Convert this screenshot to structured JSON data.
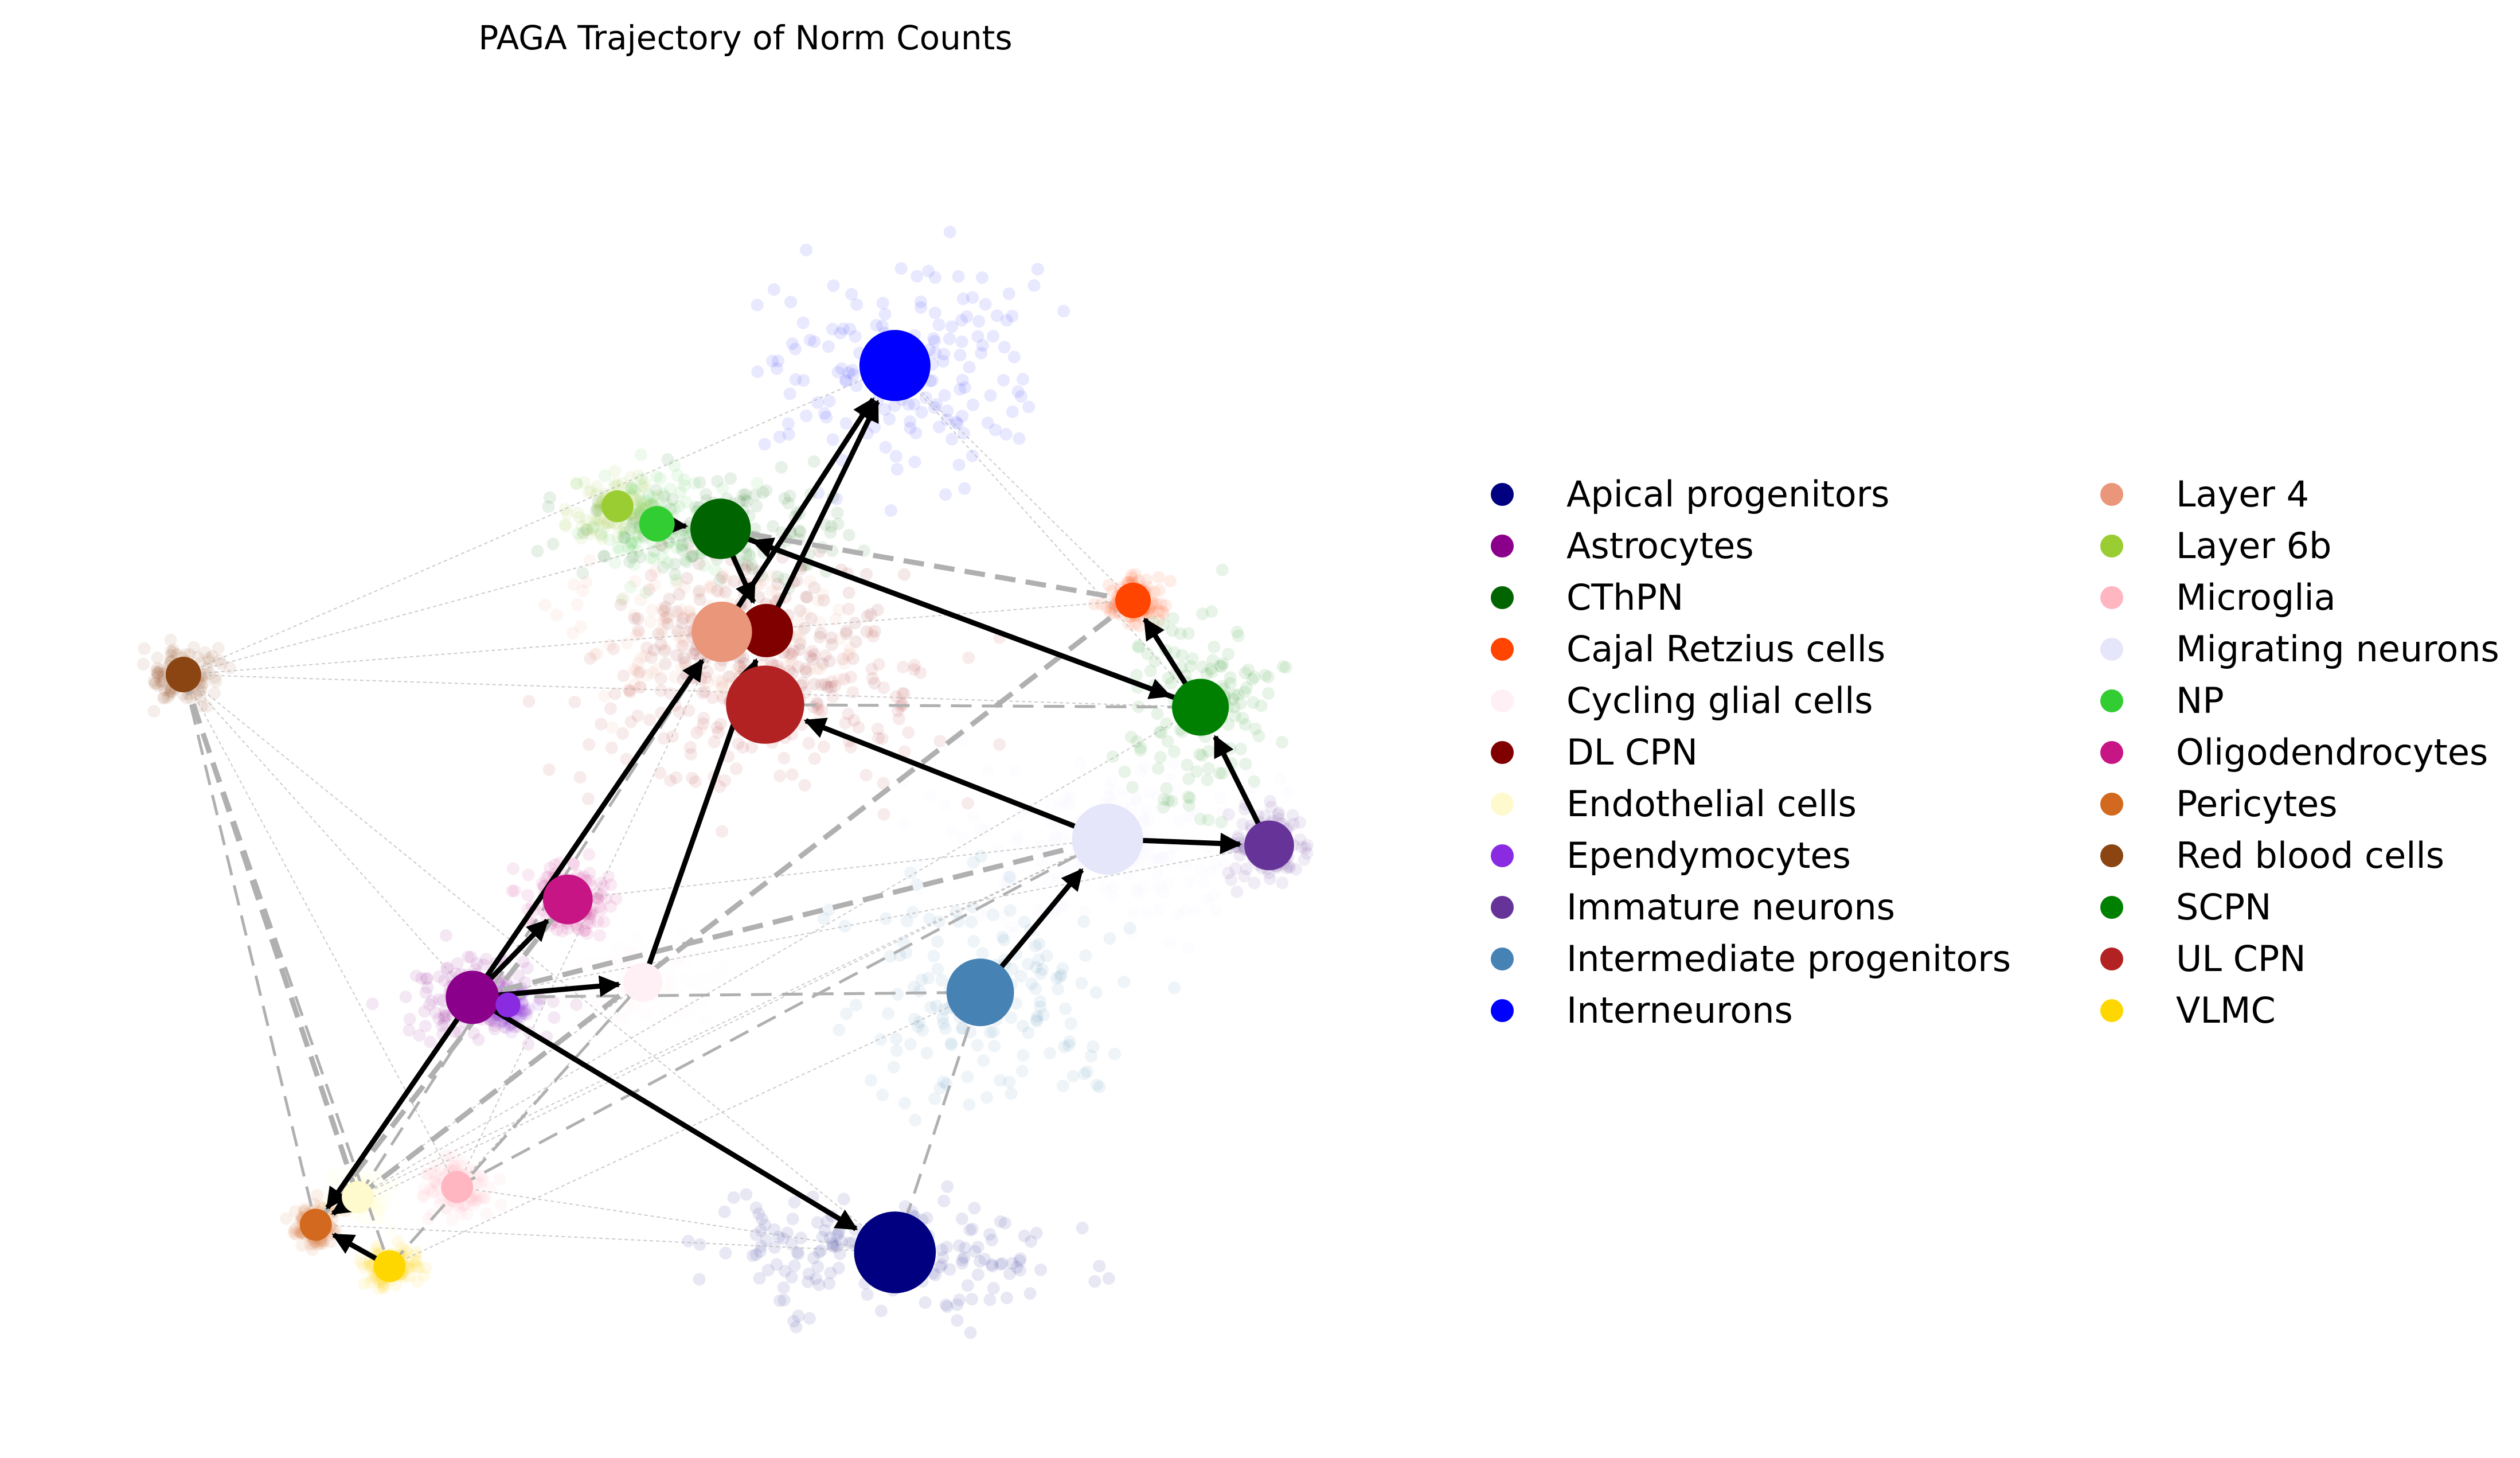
{
  "chart_data": {
    "type": "scatter",
    "title": "PAGA Trajectory of Norm Counts",
    "xlabel": "",
    "ylabel": "",
    "axes_visible": false,
    "grid": false,
    "legend_placement": "right",
    "legend_columns": 2,
    "categories": [
      {
        "name": "Apical progenitors",
        "color": "#000080"
      },
      {
        "name": "Astrocytes",
        "color": "#8B008B"
      },
      {
        "name": "CThPN",
        "color": "#006400"
      },
      {
        "name": "Cajal Retzius cells",
        "color": "#FF4500"
      },
      {
        "name": "Cycling glial cells",
        "color": "#FFF0F5"
      },
      {
        "name": "DL CPN",
        "color": "#800000"
      },
      {
        "name": "Endothelial cells",
        "color": "#FFFACD"
      },
      {
        "name": "Ependymocytes",
        "color": "#8A2BE2"
      },
      {
        "name": "Immature neurons",
        "color": "#663399"
      },
      {
        "name": "Intermediate progenitors",
        "color": "#4682B4"
      },
      {
        "name": "Interneurons",
        "color": "#0000FF"
      },
      {
        "name": "Layer 4",
        "color": "#E9967A"
      },
      {
        "name": "Layer 6b",
        "color": "#9ACD32"
      },
      {
        "name": "Microglia",
        "color": "#FFB6C1"
      },
      {
        "name": "Migrating neurons",
        "color": "#E6E6FA"
      },
      {
        "name": "NP",
        "color": "#32CD32"
      },
      {
        "name": "Oligodendrocytes",
        "color": "#C71585"
      },
      {
        "name": "Pericytes",
        "color": "#D2691E"
      },
      {
        "name": "Red blood cells",
        "color": "#8B4513"
      },
      {
        "name": "SCPN",
        "color": "#008000"
      },
      {
        "name": "UL CPN",
        "color": "#B22222"
      },
      {
        "name": "VLMC",
        "color": "#FFD700"
      }
    ],
    "nodes": [
      {
        "name": "Interneurons",
        "x": 0.622,
        "y": 0.814,
        "size": 1.0
      },
      {
        "name": "CThPN",
        "x": 0.485,
        "y": 0.684,
        "size": 0.85
      },
      {
        "name": "Layer 6b",
        "x": 0.404,
        "y": 0.702,
        "size": 0.45
      },
      {
        "name": "NP",
        "x": 0.435,
        "y": 0.688,
        "size": 0.5
      },
      {
        "name": "DL CPN",
        "x": 0.521,
        "y": 0.603,
        "size": 0.75
      },
      {
        "name": "Layer 4",
        "x": 0.486,
        "y": 0.602,
        "size": 0.85
      },
      {
        "name": "UL CPN",
        "x": 0.52,
        "y": 0.544,
        "size": 1.1
      },
      {
        "name": "Cajal Retzius cells",
        "x": 0.809,
        "y": 0.627,
        "size": 0.5
      },
      {
        "name": "SCPN",
        "x": 0.862,
        "y": 0.542,
        "size": 0.8
      },
      {
        "name": "Red blood cells",
        "x": 0.063,
        "y": 0.568,
        "size": 0.5
      },
      {
        "name": "Migrating neurons",
        "x": 0.789,
        "y": 0.437,
        "size": 1.0
      },
      {
        "name": "Immature neurons",
        "x": 0.916,
        "y": 0.432,
        "size": 0.7
      },
      {
        "name": "Oligodendrocytes",
        "x": 0.365,
        "y": 0.389,
        "size": 0.7
      },
      {
        "name": "Astrocytes",
        "x": 0.29,
        "y": 0.311,
        "size": 0.75
      },
      {
        "name": "Ependymocytes",
        "x": 0.318,
        "y": 0.305,
        "size": 0.35
      },
      {
        "name": "Cycling glial cells",
        "x": 0.424,
        "y": 0.323,
        "size": 0.55
      },
      {
        "name": "Intermediate progenitors",
        "x": 0.689,
        "y": 0.315,
        "size": 0.95
      },
      {
        "name": "Endothelial cells",
        "x": 0.2,
        "y": 0.152,
        "size": 0.45
      },
      {
        "name": "Microglia",
        "x": 0.278,
        "y": 0.16,
        "size": 0.45
      },
      {
        "name": "Pericytes",
        "x": 0.167,
        "y": 0.13,
        "size": 0.45
      },
      {
        "name": "VLMC",
        "x": 0.225,
        "y": 0.097,
        "size": 0.45
      },
      {
        "name": "Apical progenitors",
        "x": 0.622,
        "y": 0.108,
        "size": 1.15
      }
    ],
    "directed_edges": [
      {
        "from": "NP",
        "to": "CThPN"
      },
      {
        "from": "CThPN",
        "to": "DL CPN"
      },
      {
        "from": "DL CPN",
        "to": "Interneurons"
      },
      {
        "from": "Layer 4",
        "to": "Interneurons"
      },
      {
        "from": "SCPN",
        "to": "CThPN"
      },
      {
        "from": "CThPN",
        "to": "SCPN"
      },
      {
        "from": "SCPN",
        "to": "Cajal Retzius cells"
      },
      {
        "from": "Immature neurons",
        "to": "SCPN"
      },
      {
        "from": "Migrating neurons",
        "to": "Immature neurons"
      },
      {
        "from": "Migrating neurons",
        "to": "UL CPN"
      },
      {
        "from": "Intermediate progenitors",
        "to": "Migrating neurons"
      },
      {
        "from": "Astrocytes",
        "to": "Layer 4"
      },
      {
        "from": "Astrocytes",
        "to": "Oligodendrocytes"
      },
      {
        "from": "Astrocytes",
        "to": "Cycling glial cells"
      },
      {
        "from": "Astrocytes",
        "to": "Apical progenitors"
      },
      {
        "from": "Astrocytes",
        "to": "Pericytes"
      },
      {
        "from": "Cycling glial cells",
        "to": "DL CPN"
      },
      {
        "from": "Endothelial cells",
        "to": "Pericytes"
      },
      {
        "from": "VLMC",
        "to": "Pericytes"
      }
    ],
    "dashed_edges": [
      {
        "from": "CThPN",
        "to": "Cajal Retzius cells"
      },
      {
        "from": "Red blood cells",
        "to": "Pericytes"
      },
      {
        "from": "Red blood cells",
        "to": "VLMC"
      },
      {
        "from": "Red blood cells",
        "to": "Endothelial cells"
      },
      {
        "from": "Astrocytes",
        "to": "Intermediate progenitors"
      },
      {
        "from": "Microglia",
        "to": "Migrating neurons"
      },
      {
        "from": "Endothelial cells",
        "to": "Cajal Retzius cells"
      },
      {
        "from": "UL CPN",
        "to": "SCPN"
      },
      {
        "from": "VLMC",
        "to": "Cycling glial cells"
      },
      {
        "from": "Pericytes",
        "to": "Oligodendrocytes"
      },
      {
        "from": "Apical progenitors",
        "to": "Intermediate progenitors"
      },
      {
        "from": "Endothelial cells",
        "to": "Layer 4"
      },
      {
        "from": "Astrocytes",
        "to": "Migrating neurons"
      }
    ],
    "faint_edges": [
      {
        "from": "Red blood cells",
        "to": "Interneurons"
      },
      {
        "from": "Red blood cells",
        "to": "CThPN"
      },
      {
        "from": "Red blood cells",
        "to": "SCPN"
      },
      {
        "from": "Red blood cells",
        "to": "Cajal Retzius cells"
      },
      {
        "from": "Red blood cells",
        "to": "Microglia"
      },
      {
        "from": "Red blood cells",
        "to": "Astrocytes"
      },
      {
        "from": "Red blood cells",
        "to": "Apical progenitors"
      },
      {
        "from": "Interneurons",
        "to": "SCPN"
      },
      {
        "from": "Interneurons",
        "to": "Cajal Retzius cells"
      },
      {
        "from": "Pericytes",
        "to": "Migrating neurons"
      },
      {
        "from": "Pericytes",
        "to": "Apical progenitors"
      },
      {
        "from": "Microglia",
        "to": "Apical progenitors"
      },
      {
        "from": "VLMC",
        "to": "Intermediate progenitors"
      },
      {
        "from": "Endothelial cells",
        "to": "SCPN"
      },
      {
        "from": "Microglia",
        "to": "Cycling glial cells"
      },
      {
        "from": "Pericytes",
        "to": "Cycling glial cells"
      },
      {
        "from": "Microglia",
        "to": "Layer 4"
      },
      {
        "from": "Endothelial cells",
        "to": "Migrating neurons"
      },
      {
        "from": "Astrocytes",
        "to": "Immature neurons"
      },
      {
        "from": "Oligodendrocytes",
        "to": "Migrating neurons"
      }
    ]
  }
}
